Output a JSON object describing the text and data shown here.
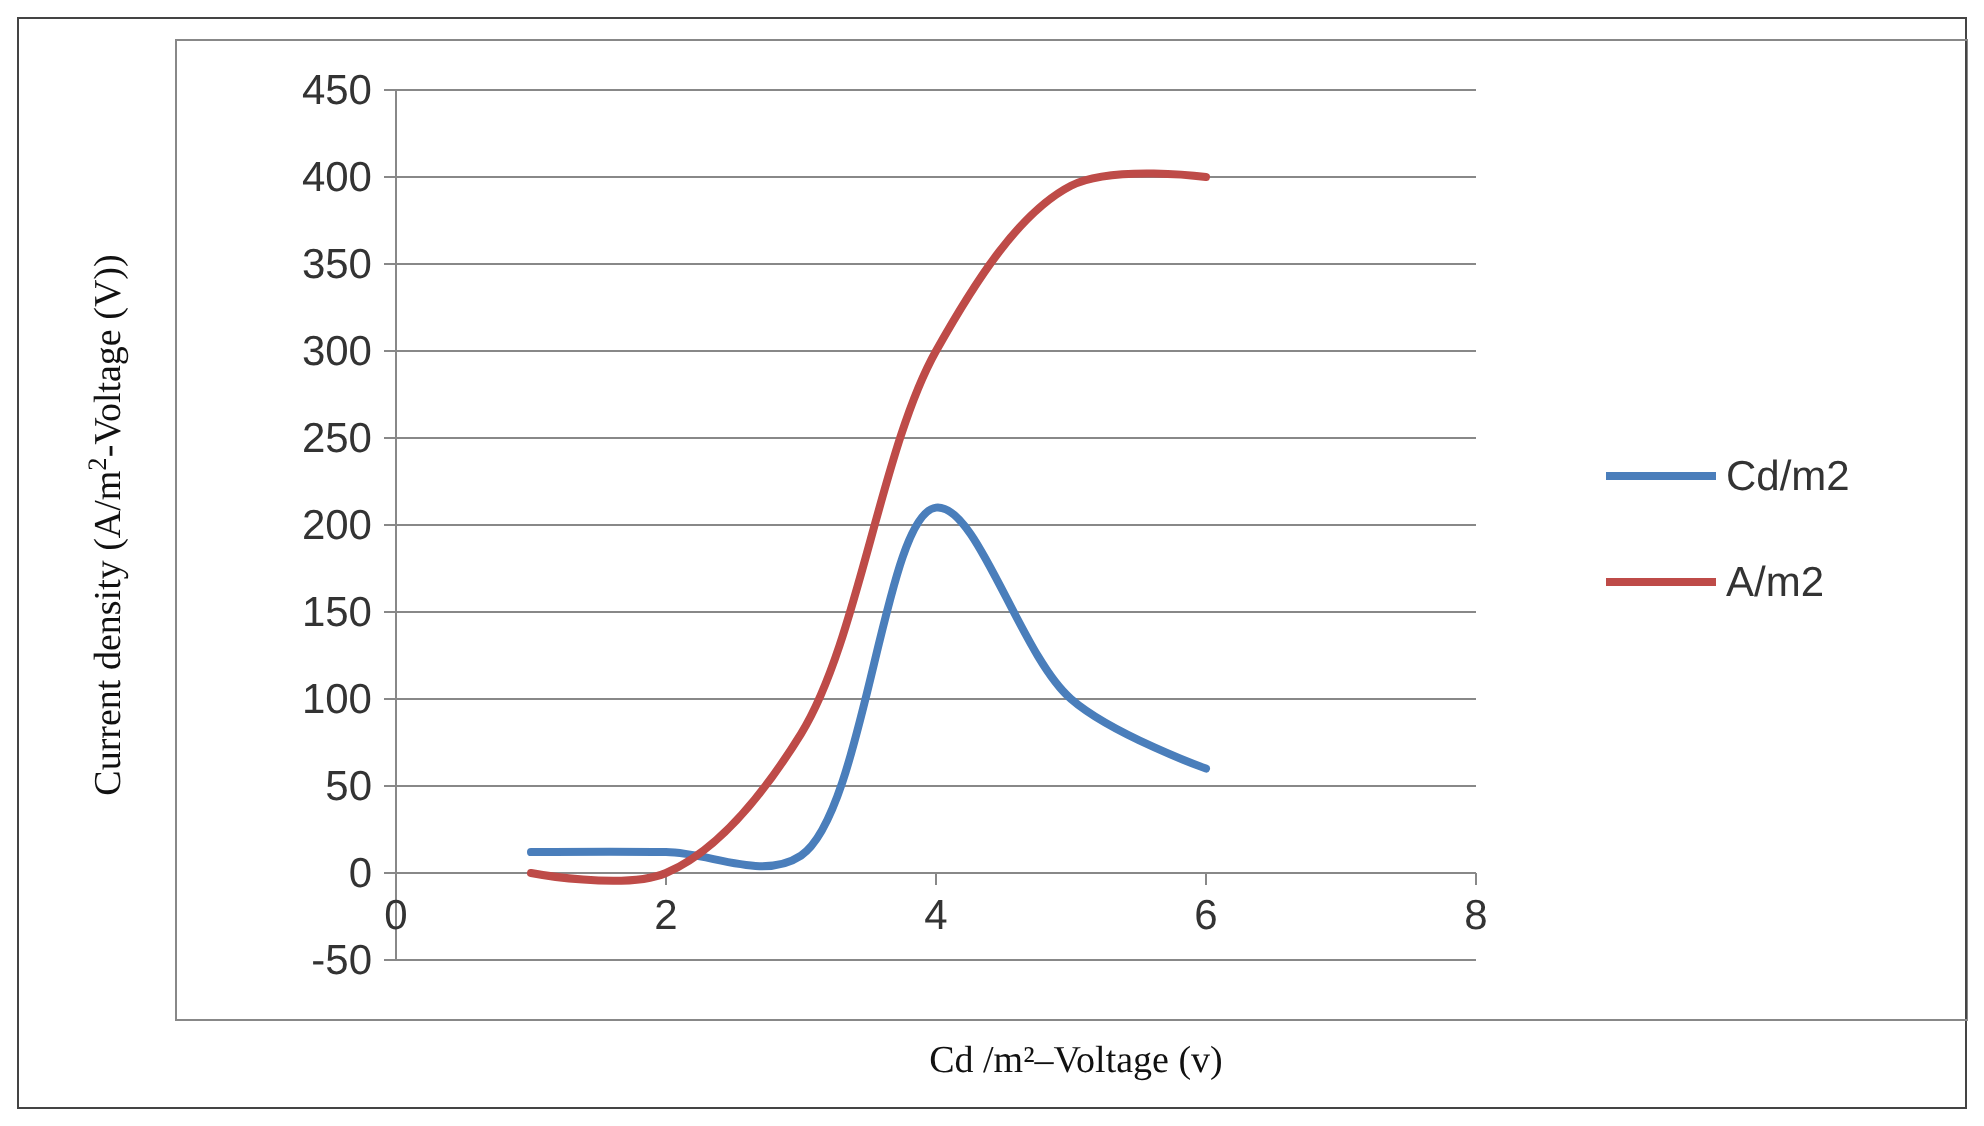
{
  "chart_data": {
    "type": "line",
    "xlabel": "Cd /m²–Voltage (v)",
    "ylabel": "Current density (A/m$^{2}$-Voltage (V))",
    "x": [
      1,
      2,
      3,
      4,
      5,
      6
    ],
    "series": [
      {
        "name": "Cd/m2",
        "color": "#4a7ebb",
        "values": [
          12,
          12,
          10,
          210,
          100,
          60
        ]
      },
      {
        "name": "A/m2",
        "color": "#be4b48",
        "values": [
          0,
          0,
          80,
          300,
          395,
          400
        ]
      }
    ],
    "xlim": [
      0,
      8
    ],
    "xticks": [
      0,
      2,
      4,
      6,
      8
    ],
    "ylim": [
      -50,
      450
    ],
    "yticks": [
      -50,
      0,
      50,
      100,
      150,
      200,
      250,
      300,
      350,
      400,
      450
    ],
    "grid": "y",
    "legend": "right",
    "marker": "none",
    "line_style": "solid"
  }
}
